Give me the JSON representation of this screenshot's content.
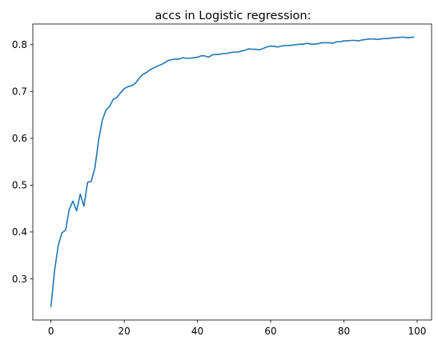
{
  "colors": {
    "line": "#1f77b4",
    "axes": "#000000",
    "background": "#ffffff"
  },
  "chart_data": {
    "type": "line",
    "title": "accs in Logistic regression:",
    "xlabel": "",
    "ylabel": "",
    "xlim": [
      -4.95,
      103.95
    ],
    "ylim": [
      0.212,
      0.844
    ],
    "grid": false,
    "xticks": [
      0,
      20,
      40,
      60,
      80,
      100
    ],
    "yticks": [
      0.3,
      0.4,
      0.5,
      0.6,
      0.7,
      0.8
    ],
    "xtick_labels": [
      "0",
      "20",
      "40",
      "60",
      "80",
      "100"
    ],
    "ytick_labels": [
      "0.3",
      "0.4",
      "0.5",
      "0.6",
      "0.7",
      "0.8"
    ],
    "series": [
      {
        "x": [
          0,
          1,
          2,
          3,
          4,
          5,
          6,
          7,
          8,
          9,
          10,
          11,
          12,
          13,
          14,
          15,
          16,
          17,
          18,
          19,
          20,
          21,
          22,
          23,
          24,
          25,
          26,
          27,
          28,
          29,
          30,
          31,
          32,
          33,
          34,
          35,
          36,
          37,
          38,
          39,
          40,
          41,
          42,
          43,
          44,
          45,
          46,
          47,
          48,
          49,
          50,
          51,
          52,
          53,
          54,
          55,
          56,
          57,
          58,
          59,
          60,
          61,
          62,
          63,
          64,
          65,
          66,
          67,
          68,
          69,
          70,
          71,
          72,
          73,
          74,
          75,
          76,
          77,
          78,
          79,
          80,
          81,
          82,
          83,
          84,
          85,
          86,
          87,
          88,
          89,
          90,
          91,
          92,
          93,
          94,
          95,
          96,
          97,
          98,
          99
        ],
        "y": [
          0.241,
          0.318,
          0.372,
          0.398,
          0.404,
          0.448,
          0.466,
          0.445,
          0.481,
          0.455,
          0.506,
          0.508,
          0.537,
          0.595,
          0.638,
          0.66,
          0.668,
          0.683,
          0.687,
          0.697,
          0.706,
          0.71,
          0.712,
          0.717,
          0.727,
          0.736,
          0.74,
          0.746,
          0.75,
          0.754,
          0.757,
          0.761,
          0.766,
          0.768,
          0.769,
          0.769,
          0.772,
          0.771,
          0.771,
          0.772,
          0.773,
          0.776,
          0.776,
          0.773,
          0.778,
          0.779,
          0.779,
          0.781,
          0.781,
          0.783,
          0.784,
          0.784,
          0.786,
          0.788,
          0.791,
          0.79,
          0.79,
          0.789,
          0.792,
          0.795,
          0.797,
          0.796,
          0.795,
          0.797,
          0.798,
          0.798,
          0.799,
          0.8,
          0.801,
          0.801,
          0.803,
          0.801,
          0.801,
          0.802,
          0.804,
          0.804,
          0.804,
          0.803,
          0.806,
          0.806,
          0.808,
          0.808,
          0.809,
          0.809,
          0.808,
          0.81,
          0.811,
          0.812,
          0.812,
          0.811,
          0.812,
          0.813,
          0.813,
          0.814,
          0.815,
          0.815,
          0.816,
          0.815,
          0.815,
          0.816
        ]
      }
    ]
  }
}
